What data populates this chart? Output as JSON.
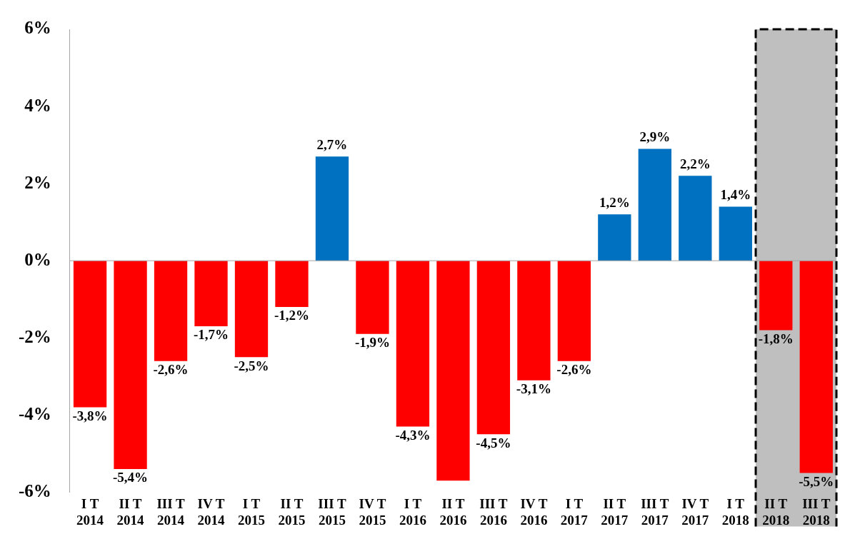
{
  "chart_data": {
    "type": "bar",
    "categories": [
      "I T 2014",
      "II T 2014",
      "III T 2014",
      "IV T 2014",
      "I T 2015",
      "II T 2015",
      "III T 2015",
      "IV T 2015",
      "I T 2016",
      "II T 2016",
      "III T 2016",
      "IV T 2016",
      "I T 2017",
      "II T 2017",
      "III T 2017",
      "IV T 2017",
      "I T 2018",
      "II T 2018",
      "III T 2018"
    ],
    "values": [
      -3.8,
      -5.4,
      -2.6,
      -1.7,
      -2.5,
      -1.2,
      2.7,
      -1.9,
      -4.3,
      -5.7,
      -4.5,
      -3.1,
      -2.6,
      1.2,
      2.9,
      2.2,
      1.4,
      -1.8,
      -5.5
    ],
    "colors": [
      "#ff0000",
      "#ff0000",
      "#ff0000",
      "#ff0000",
      "#ff0000",
      "#ff0000",
      "#0070c0",
      "#ff0000",
      "#ff0000",
      "#ff0000",
      "#ff0000",
      "#ff0000",
      "#ff0000",
      "#0070c0",
      "#0070c0",
      "#0070c0",
      "#0070c0",
      "#ff0000",
      "#ff0000"
    ],
    "value_labels": [
      "-3,8%",
      "-5,4%",
      "-2,6%",
      "-1,7%",
      "-2,5%",
      "-1,2%",
      "2,7%",
      "-1,9%",
      "-4,3%",
      null,
      "-4,5%",
      "-3,1%",
      "-2,6%",
      "1,2%",
      "2,9%",
      "2,2%",
      "1,4%",
      "-1,8%",
      "-5,5%"
    ],
    "ylim": [
      -6,
      6
    ],
    "yticks": [
      {
        "value": -6,
        "label": "-6%"
      },
      {
        "value": -4,
        "label": "-4%"
      },
      {
        "value": -2,
        "label": "-2%"
      },
      {
        "value": 0,
        "label": "0%"
      },
      {
        "value": 2,
        "label": "2%"
      },
      {
        "value": 4,
        "label": "4%"
      },
      {
        "value": 6,
        "label": "6%"
      }
    ],
    "bands": [
      {
        "axis": "x",
        "from": "II T 2018",
        "to": "III T 2018",
        "color": "#bfbfbf"
      }
    ],
    "legend": false
  }
}
